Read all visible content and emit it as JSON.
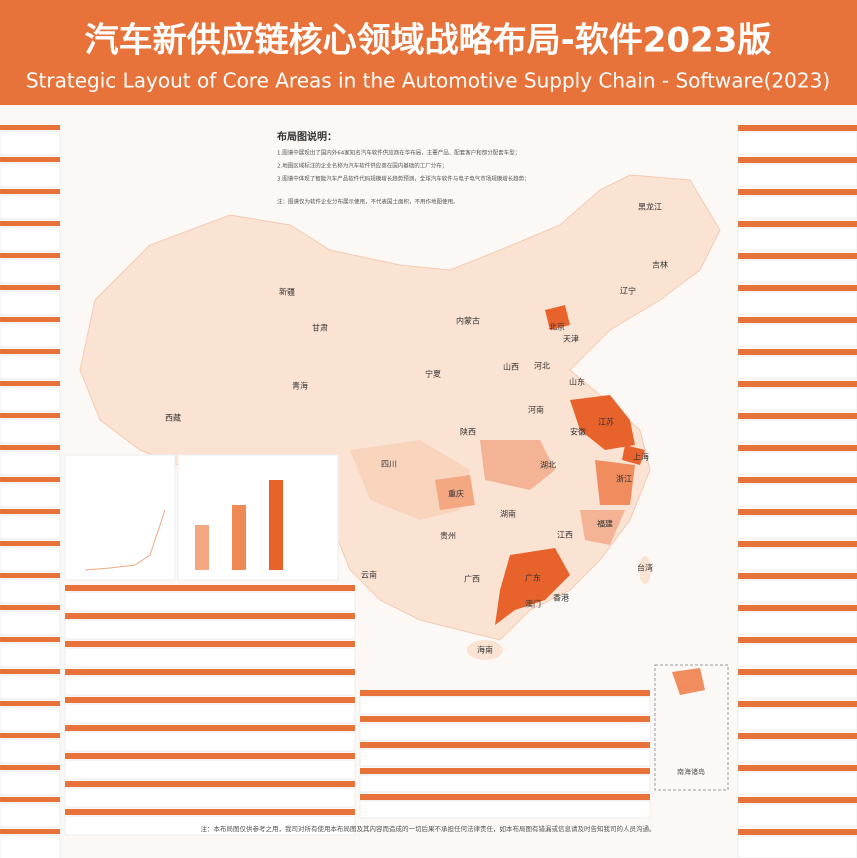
{
  "header": {
    "title": "汽车新供应链核心领域战略布局-软件2023版",
    "subtitle": "Strategic Layout of Core Areas in the Automotive Supply Chain - Software(2023)"
  },
  "legend": {
    "title": "布局图说明：",
    "notes": [
      "1.图谱中展现出了国内外64家知名汽车软件供应商在华布局，主要产品、配套客户和部分配套车型；",
      "2.地图区域标注的企业名称为汽车软件供应商在国内基础的工厂分布；",
      "3.图谱中体现了智能汽车产品软件代码规模增长趋势预测，全球汽车软件与电子电气市场规模增长趋势；",
      "注：图谱仅为软件企业分布展示使用，不代表国土面积，不用作地图使用。"
    ]
  },
  "map": {
    "provinces": [
      "黑龙江",
      "吉林",
      "辽宁",
      "新疆",
      "甘肃",
      "内蒙古",
      "北京",
      "天津",
      "青海",
      "宁夏",
      "山西",
      "河北",
      "山东",
      "西藏",
      "陕西",
      "河南",
      "江苏",
      "安徽",
      "上海",
      "四川",
      "湖北",
      "浙江",
      "重庆",
      "湖南",
      "江西",
      "福建",
      "贵州",
      "云南",
      "广西",
      "广东",
      "台湾",
      "香港",
      "澳门",
      "海南"
    ],
    "inset": "南海诸岛"
  },
  "footer": "注：本布局图仅供参考之用，我司对所有使用本布局图及其内容而造成的一切后果不承担任何法律责任，如本布局图有错漏或信息请及时告知我司的人员沟通。"
}
